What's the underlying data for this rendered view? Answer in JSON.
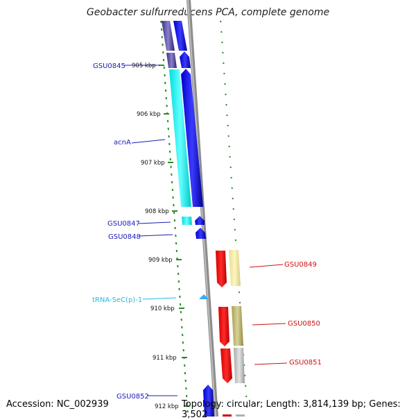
{
  "title": "Geobacter sulfurreducens PCA, complete genome",
  "footer": {
    "accession": "Accession: NC_002939",
    "summary": "Topology: circular; Length: 3,814,139 bp; Genes: 3,502"
  },
  "colors": {
    "backbone": "#8c8c8c",
    "kbp_tick": "#2a8a2a",
    "track_dots": "#2a8a2a",
    "forward_label": "#1a1ab8",
    "reverse_label": "#cc1111",
    "trna_label": "#22bbdd"
  },
  "kbp_labels": [
    "905 kbp",
    "906 kbp",
    "907 kbp",
    "908 kbp",
    "909 kbp",
    "910 kbp",
    "911 kbp",
    "912 kbp"
  ],
  "forward_labels": [
    "GSU0845",
    "acnA",
    "GSU0847",
    "GSU0848",
    "GSU0852"
  ],
  "trna_label": "tRNA-SeC(p)-1",
  "reverse_labels": [
    "GSU0849",
    "GSU0850",
    "GSU0851"
  ]
}
